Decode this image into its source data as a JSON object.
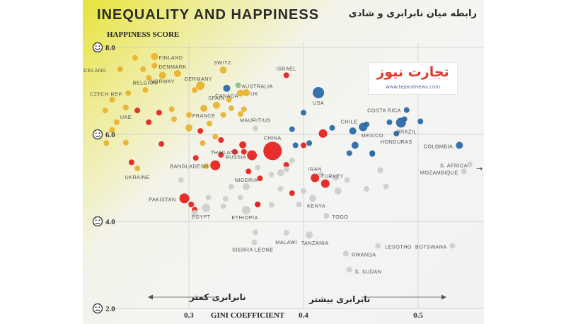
{
  "header": {
    "title": "INEQUALITY AND HAPPINESS",
    "subtitle_fa": "رابطه میان نابرابری و شادی"
  },
  "logo": {
    "name": "تجارت نیوز",
    "url_text": "www.tejaratnews.com"
  },
  "annotations": {
    "less_inequality": "نابرابری کمتر",
    "more_inequality": "نابرابری بیشتر"
  },
  "icons": [
    "smile-face-icon",
    "slight-smile-face-icon",
    "neutral-face-icon",
    "sad-face-icon"
  ],
  "colors": {
    "yellow": "#e8b330",
    "red": "#e52421",
    "blue": "#2d6aa6",
    "grey": "#cfcfcf",
    "green": "#8fbf85",
    "label": "#555555",
    "background_accent": "#e7e33a"
  },
  "chart_data": {
    "type": "scatter",
    "xlabel": "GINI COEFFICIENT",
    "ylabel": "HAPPINESS SCORE",
    "xlim": [
      0.2,
      0.55
    ],
    "ylim": [
      2.0,
      8.0
    ],
    "xticks": [
      0.3,
      0.4,
      0.5
    ],
    "xtick_labels": [
      "0.3",
      "0.4",
      "0.5"
    ],
    "yticks": [
      8.0,
      6.0,
      4.0,
      2.0
    ],
    "ytick_labels": [
      "8.0",
      "6.0",
      "4.0",
      "2.0"
    ],
    "grid": true,
    "legend": "none",
    "points": [
      {
        "label": "FINLAND",
        "x": 0.27,
        "y": 7.79,
        "c": "yellow",
        "s": 5
      },
      {
        "label": "DENMARK",
        "x": 0.27,
        "y": 7.58,
        "c": "yellow",
        "s": 4
      },
      {
        "label": "ICELAND",
        "x": 0.26,
        "y": 7.5,
        "c": "yellow",
        "s": 4
      },
      {
        "label": "SWITZ.",
        "x": 0.33,
        "y": 7.48,
        "c": "yellow",
        "s": 5
      },
      {
        "label": "ISRAEL",
        "x": 0.385,
        "y": 7.36,
        "c": "red",
        "s": 4
      },
      {
        "label": "NORWAY",
        "x": 0.277,
        "y": 7.36,
        "c": "yellow",
        "s": 5
      },
      {
        "label": "GERMANY",
        "x": 0.31,
        "y": 7.12,
        "c": "yellow",
        "s": 6
      },
      {
        "label": "AUSTRALIA",
        "x": 0.343,
        "y": 7.13,
        "c": "green",
        "s": 4
      },
      {
        "label": "BELGIUM",
        "x": 0.262,
        "y": 7.02,
        "c": "yellow",
        "s": 4
      },
      {
        "label": "CANADA",
        "x": 0.333,
        "y": 7.06,
        "c": "blue",
        "s": 5
      },
      {
        "label": "UK",
        "x": 0.35,
        "y": 6.96,
        "c": "yellow",
        "s": 5
      },
      {
        "label": "USA",
        "x": 0.413,
        "y": 6.96,
        "c": "blue",
        "s": 8
      },
      {
        "label": "CZECH REP.",
        "x": 0.247,
        "y": 6.95,
        "c": "yellow",
        "s": 4
      },
      {
        "label": "SPAIN",
        "x": 0.324,
        "y": 6.67,
        "c": "yellow",
        "s": 5
      },
      {
        "label": "FRANCE",
        "x": 0.313,
        "y": 6.6,
        "c": "yellow",
        "s": 5
      },
      {
        "label": "UAE",
        "x": 0.255,
        "y": 6.55,
        "c": "red",
        "s": 4
      },
      {
        "label": "COSTA RICA",
        "x": 0.49,
        "y": 6.56,
        "c": "blue",
        "s": 4
      },
      {
        "label": "CHILE",
        "x": 0.452,
        "y": 6.17,
        "c": "blue",
        "s": 6
      },
      {
        "label": "BRAZIL",
        "x": 0.485,
        "y": 6.27,
        "c": "blue",
        "s": 7
      },
      {
        "label": "MAURITIUS",
        "x": 0.358,
        "y": 6.14,
        "c": "grey",
        "s": 4
      },
      {
        "label": "MEXICO",
        "x": 0.443,
        "y": 6.08,
        "c": "blue",
        "s": 5
      },
      {
        "label": "HONDURAS",
        "x": 0.481,
        "y": 6.02,
        "c": "blue",
        "s": 4
      },
      {
        "label": "COLOMBIA",
        "x": 0.536,
        "y": 5.75,
        "c": "blue",
        "s": 5
      },
      {
        "label": "THAILAND",
        "x": 0.347,
        "y": 5.76,
        "c": "red",
        "s": 5
      },
      {
        "label": "CHINA",
        "x": 0.373,
        "y": 5.62,
        "c": "red",
        "s": 13
      },
      {
        "label": "RUSSIA",
        "x": 0.355,
        "y": 5.52,
        "c": "red",
        "s": 7
      },
      {
        "label": "BANGLADESH",
        "x": 0.323,
        "y": 5.29,
        "c": "red",
        "s": 7
      },
      {
        "label": "S. AFRICA",
        "x": 0.545,
        "y": 5.31,
        "c": "grey",
        "s": 4
      },
      {
        "label": "MOZAMBIQUE",
        "x": 0.54,
        "y": 5.15,
        "c": "grey",
        "s": 4
      },
      {
        "label": "UKRAINE",
        "x": 0.255,
        "y": 5.22,
        "c": "yellow",
        "s": 4
      },
      {
        "label": "IRAN",
        "x": 0.41,
        "y": 5.0,
        "c": "red",
        "s": 6
      },
      {
        "label": "TURKEY",
        "x": 0.419,
        "y": 4.87,
        "c": "red",
        "s": 6
      },
      {
        "label": "NIGERIA",
        "x": 0.35,
        "y": 4.8,
        "c": "grey",
        "s": 5
      },
      {
        "label": "PAKISTAN",
        "x": 0.296,
        "y": 4.53,
        "c": "red",
        "s": 7
      },
      {
        "label": "KENYA",
        "x": 0.408,
        "y": 4.53,
        "c": "grey",
        "s": 5
      },
      {
        "label": "EGYPT",
        "x": 0.315,
        "y": 4.31,
        "c": "grey",
        "s": 6
      },
      {
        "label": "ETHIOPIA",
        "x": 0.35,
        "y": 4.26,
        "c": "grey",
        "s": 6
      },
      {
        "label": "TOGO",
        "x": 0.42,
        "y": 4.13,
        "c": "grey",
        "s": 4
      },
      {
        "label": "MALAWI",
        "x": 0.385,
        "y": 3.74,
        "c": "grey",
        "s": 4
      },
      {
        "label": "TANZANIA",
        "x": 0.405,
        "y": 3.69,
        "c": "grey",
        "s": 5
      },
      {
        "label": "LESOTHO",
        "x": 0.465,
        "y": 3.44,
        "c": "grey",
        "s": 4
      },
      {
        "label": "BOTSWANA",
        "x": 0.53,
        "y": 3.44,
        "c": "grey",
        "s": 4
      },
      {
        "label": "SIERRA LEONE",
        "x": 0.357,
        "y": 3.52,
        "c": "grey",
        "s": 4
      },
      {
        "label": "RWANDA",
        "x": 0.437,
        "y": 3.26,
        "c": "grey",
        "s": 4
      },
      {
        "label": "S. SUDAN",
        "x": 0.44,
        "y": 2.89,
        "c": "grey",
        "s": 4
      },
      {
        "label": "",
        "x": 0.253,
        "y": 7.76,
        "c": "yellow",
        "s": 4
      },
      {
        "label": "",
        "x": 0.24,
        "y": 7.5,
        "c": "yellow",
        "s": 4
      },
      {
        "label": "",
        "x": 0.265,
        "y": 7.3,
        "c": "yellow",
        "s": 4
      },
      {
        "label": "",
        "x": 0.29,
        "y": 7.4,
        "c": "yellow",
        "s": 5
      },
      {
        "label": "",
        "x": 0.305,
        "y": 7.02,
        "c": "yellow",
        "s": 4
      },
      {
        "label": "",
        "x": 0.345,
        "y": 6.95,
        "c": "yellow",
        "s": 5
      },
      {
        "label": "",
        "x": 0.335,
        "y": 6.8,
        "c": "yellow",
        "s": 4
      },
      {
        "label": "",
        "x": 0.233,
        "y": 6.8,
        "c": "yellow",
        "s": 4
      },
      {
        "label": "",
        "x": 0.227,
        "y": 6.55,
        "c": "yellow",
        "s": 4
      },
      {
        "label": "",
        "x": 0.237,
        "y": 6.28,
        "c": "yellow",
        "s": 4
      },
      {
        "label": "",
        "x": 0.245,
        "y": 6.62,
        "c": "yellow",
        "s": 4
      },
      {
        "label": "",
        "x": 0.287,
        "y": 6.35,
        "c": "yellow",
        "s": 4
      },
      {
        "label": "",
        "x": 0.3,
        "y": 6.45,
        "c": "yellow",
        "s": 4
      },
      {
        "label": "",
        "x": 0.3,
        "y": 6.15,
        "c": "yellow",
        "s": 5
      },
      {
        "label": "",
        "x": 0.318,
        "y": 6.25,
        "c": "yellow",
        "s": 4
      },
      {
        "label": "",
        "x": 0.33,
        "y": 6.45,
        "c": "yellow",
        "s": 4
      },
      {
        "label": "",
        "x": 0.337,
        "y": 6.6,
        "c": "yellow",
        "s": 4
      },
      {
        "label": "",
        "x": 0.345,
        "y": 6.47,
        "c": "yellow",
        "s": 4
      },
      {
        "label": "",
        "x": 0.348,
        "y": 6.58,
        "c": "yellow",
        "s": 4
      },
      {
        "label": "",
        "x": 0.285,
        "y": 6.58,
        "c": "yellow",
        "s": 4
      },
      {
        "label": "",
        "x": 0.323,
        "y": 5.95,
        "c": "yellow",
        "s": 4
      },
      {
        "label": "",
        "x": 0.312,
        "y": 5.8,
        "c": "yellow",
        "s": 4
      },
      {
        "label": "",
        "x": 0.245,
        "y": 5.81,
        "c": "yellow",
        "s": 4
      },
      {
        "label": "",
        "x": 0.228,
        "y": 5.8,
        "c": "yellow",
        "s": 4
      },
      {
        "label": "",
        "x": 0.233,
        "y": 6.1,
        "c": "yellow",
        "s": 4
      },
      {
        "label": "",
        "x": 0.315,
        "y": 5.27,
        "c": "yellow",
        "s": 4
      },
      {
        "label": "",
        "x": 0.25,
        "y": 5.36,
        "c": "red",
        "s": 4
      },
      {
        "label": "",
        "x": 0.265,
        "y": 6.28,
        "c": "red",
        "s": 4
      },
      {
        "label": "",
        "x": 0.274,
        "y": 6.5,
        "c": "red",
        "s": 4
      },
      {
        "label": "",
        "x": 0.276,
        "y": 5.78,
        "c": "red",
        "s": 4
      },
      {
        "label": "",
        "x": 0.31,
        "y": 6.08,
        "c": "red",
        "s": 4
      },
      {
        "label": "",
        "x": 0.328,
        "y": 5.87,
        "c": "red",
        "s": 4
      },
      {
        "label": "",
        "x": 0.34,
        "y": 5.6,
        "c": "red",
        "s": 4
      },
      {
        "label": "",
        "x": 0.352,
        "y": 5.15,
        "c": "red",
        "s": 4
      },
      {
        "label": "",
        "x": 0.362,
        "y": 4.99,
        "c": "red",
        "s": 4
      },
      {
        "label": "",
        "x": 0.39,
        "y": 4.65,
        "c": "red",
        "s": 4
      },
      {
        "label": "",
        "x": 0.385,
        "y": 5.3,
        "c": "red",
        "s": 4
      },
      {
        "label": "",
        "x": 0.4,
        "y": 5.75,
        "c": "red",
        "s": 4
      },
      {
        "label": "",
        "x": 0.417,
        "y": 6.02,
        "c": "red",
        "s": 6
      },
      {
        "label": "",
        "x": 0.36,
        "y": 4.39,
        "c": "red",
        "s": 4
      },
      {
        "label": "",
        "x": 0.302,
        "y": 4.39,
        "c": "red",
        "s": 4
      },
      {
        "label": "",
        "x": 0.328,
        "y": 5.53,
        "c": "red",
        "s": 4
      },
      {
        "label": "",
        "x": 0.306,
        "y": 5.46,
        "c": "red",
        "s": 4
      },
      {
        "label": "",
        "x": 0.305,
        "y": 4.27,
        "c": "red",
        "s": 4
      },
      {
        "label": "",
        "x": 0.36,
        "y": 4.39,
        "c": "red",
        "s": 4
      },
      {
        "label": "",
        "x": 0.348,
        "y": 5.6,
        "c": "red",
        "s": 4
      },
      {
        "label": "",
        "x": 0.4,
        "y": 6.5,
        "c": "blue",
        "s": 4
      },
      {
        "label": "",
        "x": 0.39,
        "y": 6.12,
        "c": "blue",
        "s": 4
      },
      {
        "label": "",
        "x": 0.425,
        "y": 6.15,
        "c": "blue",
        "s": 4
      },
      {
        "label": "",
        "x": 0.445,
        "y": 5.75,
        "c": "blue",
        "s": 5
      },
      {
        "label": "",
        "x": 0.455,
        "y": 6.23,
        "c": "blue",
        "s": 4
      },
      {
        "label": "",
        "x": 0.46,
        "y": 5.55,
        "c": "blue",
        "s": 4
      },
      {
        "label": "",
        "x": 0.475,
        "y": 6.28,
        "c": "blue",
        "s": 4
      },
      {
        "label": "",
        "x": 0.44,
        "y": 5.57,
        "c": "blue",
        "s": 4
      },
      {
        "label": "",
        "x": 0.393,
        "y": 5.75,
        "c": "blue",
        "s": 4
      },
      {
        "label": "",
        "x": 0.488,
        "y": 6.35,
        "c": "blue",
        "s": 4
      },
      {
        "label": "",
        "x": 0.502,
        "y": 6.3,
        "c": "blue",
        "s": 4
      },
      {
        "label": "",
        "x": 0.46,
        "y": 5.57,
        "c": "blue",
        "s": 4
      },
      {
        "label": "",
        "x": 0.405,
        "y": 5.8,
        "c": "blue",
        "s": 4
      },
      {
        "label": "",
        "x": 0.36,
        "y": 5.24,
        "c": "grey",
        "s": 4
      },
      {
        "label": "",
        "x": 0.372,
        "y": 5.08,
        "c": "grey",
        "s": 4
      },
      {
        "label": "",
        "x": 0.38,
        "y": 5.12,
        "c": "grey",
        "s": 5
      },
      {
        "label": "",
        "x": 0.38,
        "y": 4.75,
        "c": "grey",
        "s": 4
      },
      {
        "label": "",
        "x": 0.385,
        "y": 5.2,
        "c": "grey",
        "s": 4
      },
      {
        "label": "",
        "x": 0.39,
        "y": 5.4,
        "c": "grey",
        "s": 4
      },
      {
        "label": "",
        "x": 0.372,
        "y": 4.38,
        "c": "grey",
        "s": 4
      },
      {
        "label": "",
        "x": 0.337,
        "y": 4.8,
        "c": "grey",
        "s": 4
      },
      {
        "label": "",
        "x": 0.345,
        "y": 4.55,
        "c": "grey",
        "s": 4
      },
      {
        "label": "",
        "x": 0.317,
        "y": 4.55,
        "c": "grey",
        "s": 4
      },
      {
        "label": "",
        "x": 0.293,
        "y": 4.95,
        "c": "grey",
        "s": 4
      },
      {
        "label": "",
        "x": 0.305,
        "y": 4.2,
        "c": "grey",
        "s": 4
      },
      {
        "label": "",
        "x": 0.33,
        "y": 4.35,
        "c": "grey",
        "s": 4
      },
      {
        "label": "",
        "x": 0.4,
        "y": 4.7,
        "c": "grey",
        "s": 4
      },
      {
        "label": "",
        "x": 0.415,
        "y": 5.08,
        "c": "grey",
        "s": 4
      },
      {
        "label": "",
        "x": 0.428,
        "y": 5.0,
        "c": "grey",
        "s": 4
      },
      {
        "label": "",
        "x": 0.43,
        "y": 4.7,
        "c": "grey",
        "s": 5
      },
      {
        "label": "",
        "x": 0.455,
        "y": 4.75,
        "c": "grey",
        "s": 4
      },
      {
        "label": "",
        "x": 0.467,
        "y": 5.18,
        "c": "grey",
        "s": 4
      },
      {
        "label": "",
        "x": 0.472,
        "y": 4.8,
        "c": "grey",
        "s": 4
      },
      {
        "label": "",
        "x": 0.438,
        "y": 4.95,
        "c": "grey",
        "s": 4
      },
      {
        "label": "",
        "x": 0.358,
        "y": 3.75,
        "c": "grey",
        "s": 4
      },
      {
        "label": "",
        "x": 0.396,
        "y": 4.39,
        "c": "grey",
        "s": 4
      },
      {
        "label": "",
        "x": 0.332,
        "y": 4.52,
        "c": "grey",
        "s": 4
      },
      {
        "label": "",
        "x": 0.467,
        "y": 5.17,
        "c": "grey",
        "s": 4
      }
    ]
  }
}
